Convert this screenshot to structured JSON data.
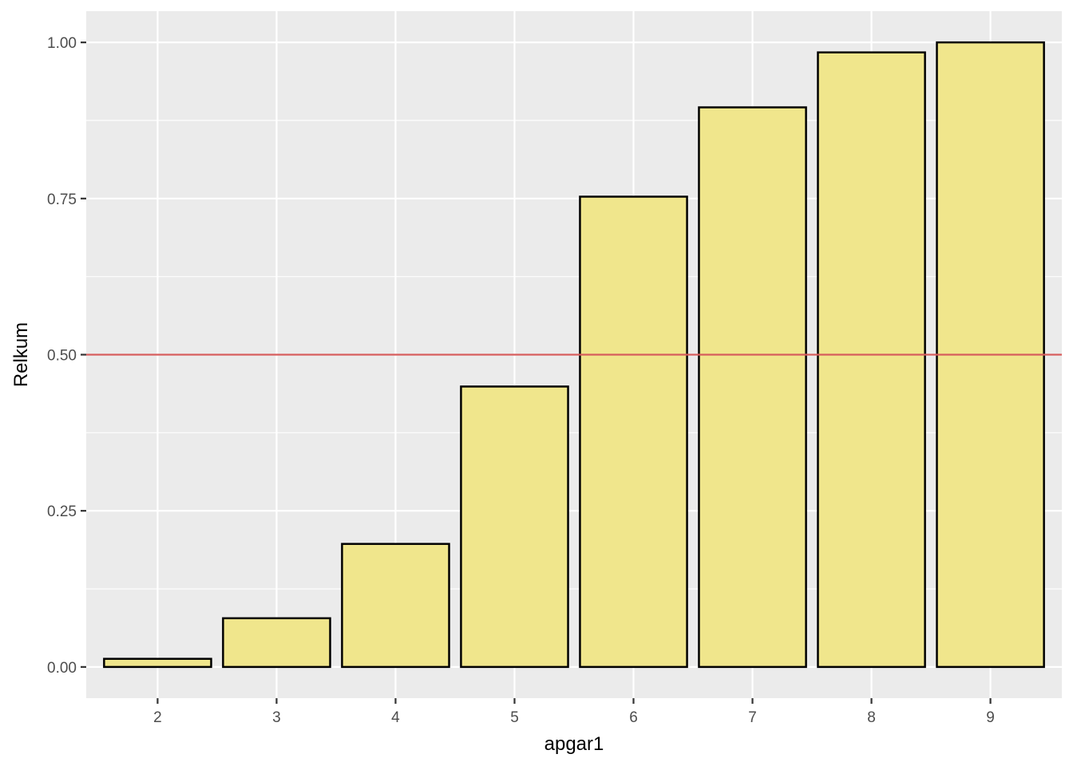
{
  "chart_data": {
    "type": "bar",
    "title": "",
    "xlabel": "apgar1",
    "ylabel": "Relkum",
    "categories": [
      "2",
      "3",
      "4",
      "5",
      "6",
      "7",
      "8",
      "9"
    ],
    "values": [
      0.013,
      0.078,
      0.197,
      0.449,
      0.753,
      0.896,
      0.984,
      1.0
    ],
    "ylim": [
      -0.05,
      1.05
    ],
    "yticks": [
      0.0,
      0.25,
      0.5,
      0.75,
      1.0
    ],
    "ytick_labels": [
      "0.00",
      "0.25",
      "0.50",
      "0.75",
      "1.00"
    ],
    "reference_line": {
      "y": 0.5,
      "color": "#d65c5c"
    },
    "bar_fill": "#f0e68c",
    "bar_stroke": "#000000",
    "panel_background": "#ebebeb",
    "grid": true,
    "legend": "none"
  }
}
